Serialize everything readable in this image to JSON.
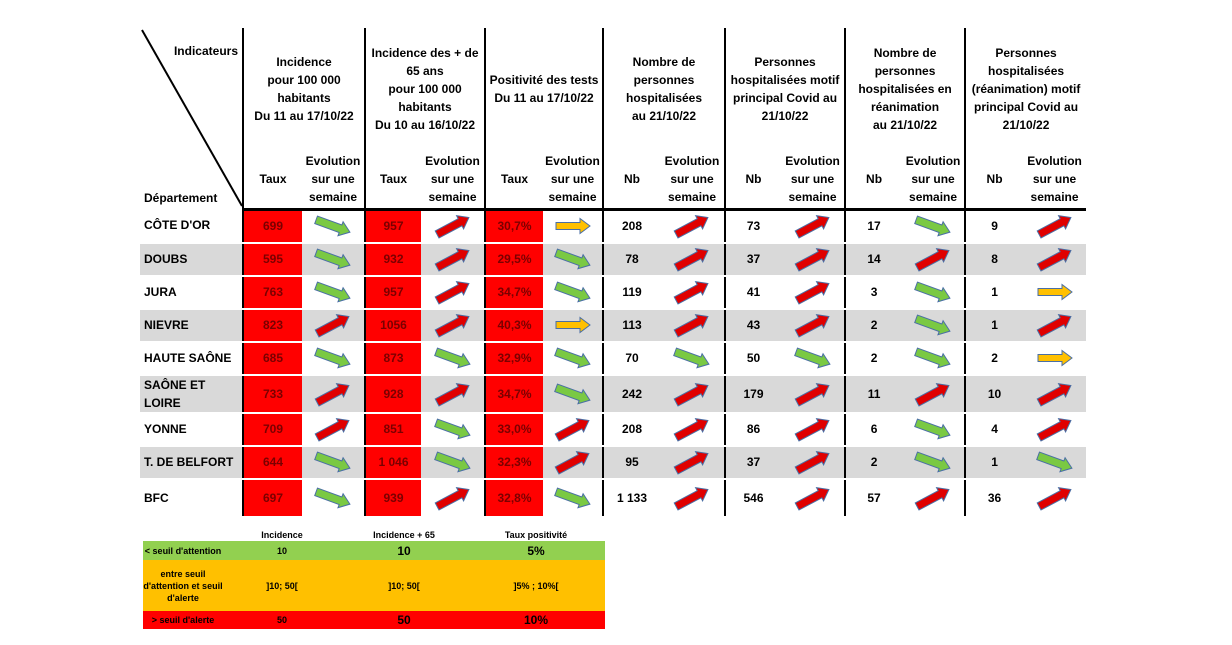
{
  "header": {
    "indicators_label": "Indicateurs",
    "department_label": "Département",
    "groups": [
      [
        "Incidence",
        "pour 100 000",
        "habitants",
        "Du 11 au 17/10/22"
      ],
      [
        "Incidence des + de",
        "65 ans",
        "pour 100 000",
        "habitants",
        "Du 10 au 16/10/22"
      ],
      [
        "Positivité des tests",
        "Du 11 au 17/10/22"
      ],
      [
        "Nombre de",
        "personnes",
        "hospitalisées",
        "au 21/10/22"
      ],
      [
        "Personnes",
        "hospitalisées motif",
        "principal Covid au",
        "21/10/22"
      ],
      [
        "Nombre de",
        "personnes",
        "hospitalisées en",
        "réanimation",
        "au 21/10/22"
      ],
      [
        "Personnes",
        "hospitalisées",
        "(réanimation) motif",
        "principal Covid au",
        "21/10/22"
      ]
    ],
    "sub_value": [
      "Taux",
      "Taux",
      "Taux",
      "Nb",
      "Nb",
      "Nb",
      "Nb"
    ],
    "sub_evolution": [
      "Evolution",
      "sur une",
      "semaine"
    ]
  },
  "rows": [
    {
      "dept": "CÔTE D'OR",
      "values": [
        "699",
        "957",
        "30,7%",
        "208",
        "73",
        "17",
        "9"
      ],
      "arrows": [
        "green",
        "red",
        "orange",
        "red",
        "red",
        "green",
        "red"
      ]
    },
    {
      "dept": "DOUBS",
      "values": [
        "595",
        "932",
        "29,5%",
        "78",
        "37",
        "14",
        "8"
      ],
      "arrows": [
        "green",
        "red",
        "green",
        "red",
        "red",
        "red",
        "red"
      ]
    },
    {
      "dept": "JURA",
      "values": [
        "763",
        "957",
        "34,7%",
        "119",
        "41",
        "3",
        "1"
      ],
      "arrows": [
        "green",
        "red",
        "green",
        "red",
        "red",
        "green",
        "orange"
      ]
    },
    {
      "dept": "NIEVRE",
      "values": [
        "823",
        "1056",
        "40,3%",
        "113",
        "43",
        "2",
        "1"
      ],
      "arrows": [
        "red",
        "red",
        "orange",
        "red",
        "red",
        "green",
        "red"
      ]
    },
    {
      "dept": "HAUTE SAÔNE",
      "values": [
        "685",
        "873",
        "32,9%",
        "70",
        "50",
        "2",
        "2"
      ],
      "arrows": [
        "green",
        "green",
        "green",
        "green",
        "green",
        "green",
        "orange"
      ]
    },
    {
      "dept": "SAÔNE ET LOIRE",
      "values": [
        "733",
        "928",
        "34,7%",
        "242",
        "179",
        "11",
        "10"
      ],
      "arrows": [
        "red",
        "red",
        "green",
        "red",
        "red",
        "red",
        "red"
      ]
    },
    {
      "dept": "YONNE",
      "values": [
        "709",
        "851",
        "33,0%",
        "208",
        "86",
        "6",
        "4"
      ],
      "arrows": [
        "red",
        "green",
        "red",
        "red",
        "red",
        "green",
        "red"
      ]
    },
    {
      "dept": "T. DE BELFORT",
      "values": [
        "644",
        "1 046",
        "32,3%",
        "95",
        "37",
        "2",
        "1"
      ],
      "arrows": [
        "green",
        "green",
        "red",
        "red",
        "red",
        "green",
        "green"
      ]
    },
    {
      "dept": "BFC",
      "values": [
        "697",
        "939",
        "32,8%",
        "1 133",
        "546",
        "57",
        "36"
      ],
      "arrows": [
        "green",
        "red",
        "green",
        "red",
        "red",
        "red",
        "red"
      ]
    }
  ],
  "legend": {
    "headers": [
      "Incidence",
      "Incidence + 65",
      "Taux positivité"
    ],
    "rows": [
      {
        "label": [
          "< seuil d'attention"
        ],
        "values": [
          "10",
          "10",
          "5%"
        ],
        "color": "#92d050"
      },
      {
        "label": [
          "entre seuil",
          "d'attention et seuil",
          "d'alerte"
        ],
        "values": [
          "]10; 50[",
          "]10; 50[",
          "]5% ; 10%["
        ],
        "color": "#ffc000"
      },
      {
        "label": [
          "> seuil d'alerte"
        ],
        "values": [
          "50",
          "50",
          "10%"
        ],
        "color": "#ff0000"
      }
    ]
  },
  "colors": {
    "red_cell": "#ff0000",
    "shade": "#d9d9d9",
    "arrow_green": "#7ac943",
    "arrow_red": "#e00000",
    "arrow_orange": "#ffc000",
    "arrow_outline": "#4a6fa5"
  },
  "icons": {
    "up": "arrow-up-right-icon",
    "down": "arrow-down-right-icon",
    "flat": "arrow-right-icon"
  }
}
